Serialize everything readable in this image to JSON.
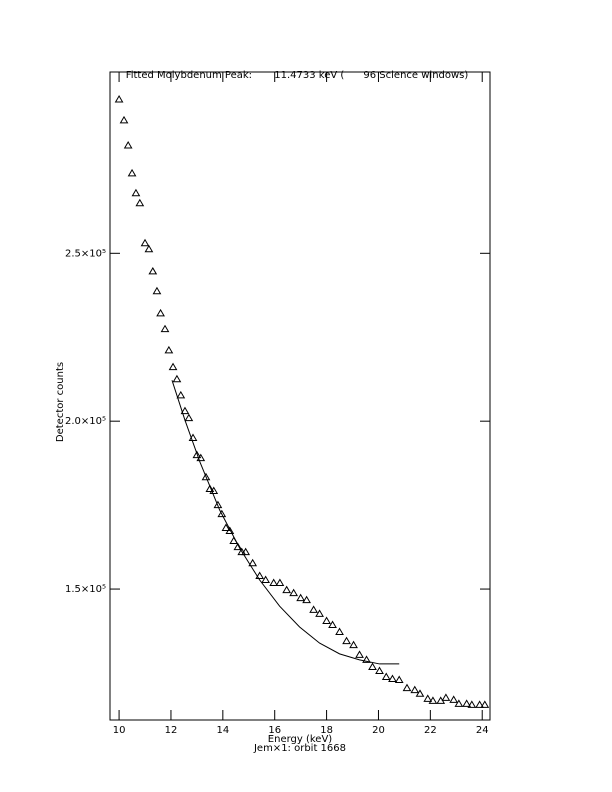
{
  "chart_data": {
    "type": "scatter",
    "title": "Fitted Molybdenum Peak:       11.4733 keV (      96 Science windows)",
    "x_label": "Energy (keV)",
    "subtitle": "Jem×1: orbit 1668",
    "y_label": "Detector counts",
    "xlim": [
      9.65,
      24.3
    ],
    "ylim": [
      111000,
      304000
    ],
    "xticks": [
      10,
      12,
      14,
      16,
      18,
      20,
      22,
      24
    ],
    "yticks": [
      {
        "value": 150000,
        "label": "1.5×10⁵"
      },
      {
        "value": 200000,
        "label": "2.0×10⁵"
      },
      {
        "value": 250000,
        "label": "2.5×10⁵"
      }
    ],
    "series": [
      {
        "type": "scatter",
        "marker": "triangle",
        "color": "#000000",
        "x": [
          10.0,
          10.19,
          10.35,
          10.5,
          10.65,
          10.8,
          11.0,
          11.15,
          11.3,
          11.46,
          11.6,
          11.77,
          11.92,
          12.08,
          12.23,
          12.38,
          12.54,
          12.69,
          12.85,
          13.0,
          13.15,
          13.35,
          13.5,
          13.65,
          13.81,
          13.96,
          14.12,
          14.27,
          14.42,
          14.58,
          14.73,
          14.88,
          15.15,
          15.42,
          15.65,
          15.96,
          16.2,
          16.46,
          16.73,
          17.0,
          17.23,
          17.5,
          17.73,
          18.0,
          18.23,
          18.5,
          18.77,
          19.04,
          19.27,
          19.54,
          19.77,
          20.04,
          20.3,
          20.54,
          20.8,
          21.1,
          21.4,
          21.6,
          21.9,
          22.1,
          22.4,
          22.6,
          22.9,
          23.1,
          23.4,
          23.6,
          23.9,
          24.1
        ],
        "values": [
          295800,
          289600,
          282100,
          273800,
          267900,
          264900,
          253000,
          251200,
          244600,
          238700,
          232100,
          227400,
          221100,
          216100,
          212500,
          207700,
          203000,
          200900,
          195000,
          189900,
          189000,
          183300,
          179800,
          179200,
          175000,
          172300,
          168200,
          167300,
          164300,
          162500,
          161000,
          161000,
          157700,
          153900,
          152700,
          151800,
          151800,
          149700,
          148800,
          147300,
          146700,
          143800,
          142600,
          140500,
          139300,
          137200,
          134500,
          133300,
          130400,
          128900,
          126800,
          125600,
          123800,
          123200,
          122900,
          120500,
          119900,
          118800,
          117300,
          116700,
          116700,
          117600,
          117000,
          115800,
          115800,
          115500,
          115500,
          115500
        ]
      },
      {
        "type": "line",
        "color": "#000000",
        "x": [
          12.04,
          12.54,
          13.12,
          13.88,
          14.65,
          15.42,
          16.19,
          16.96,
          17.73,
          18.5,
          19.27,
          20.04,
          20.8
        ],
        "values": [
          212200,
          200300,
          187800,
          173500,
          162200,
          152700,
          144900,
          138700,
          133900,
          130700,
          128900,
          127700,
          127700
        ]
      }
    ]
  }
}
